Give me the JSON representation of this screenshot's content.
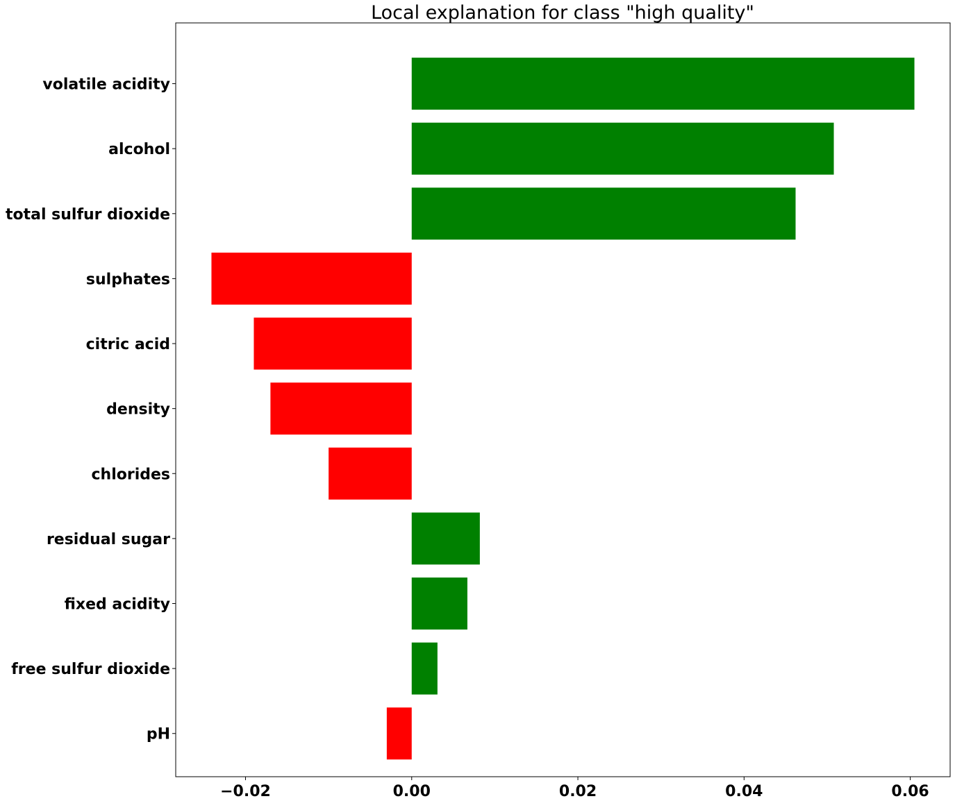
{
  "chart_data": {
    "type": "bar",
    "orientation": "horizontal",
    "title": "Local explanation for class \"high quality\"",
    "xlabel": "",
    "ylabel": "",
    "xlim": [
      -0.0284,
      0.0648
    ],
    "xticks": [
      -0.02,
      0.0,
      0.02,
      0.04,
      0.06
    ],
    "xtick_labels": [
      "−0.02",
      "0.00",
      "0.02",
      "0.04",
      "0.06"
    ],
    "grid": false,
    "positive_color": "#008000",
    "negative_color": "#ff0000",
    "categories": [
      "volatile acidity",
      "alcohol",
      "total sulfur dioxide",
      "sulphates",
      "citric acid",
      "density",
      "chlorides",
      "residual sugar",
      "fixed acidity",
      "free sulfur dioxide",
      "pH"
    ],
    "values": [
      0.0605,
      0.0508,
      0.0462,
      -0.0241,
      -0.019,
      -0.017,
      -0.01,
      0.0082,
      0.0067,
      0.0031,
      -0.003
    ]
  }
}
